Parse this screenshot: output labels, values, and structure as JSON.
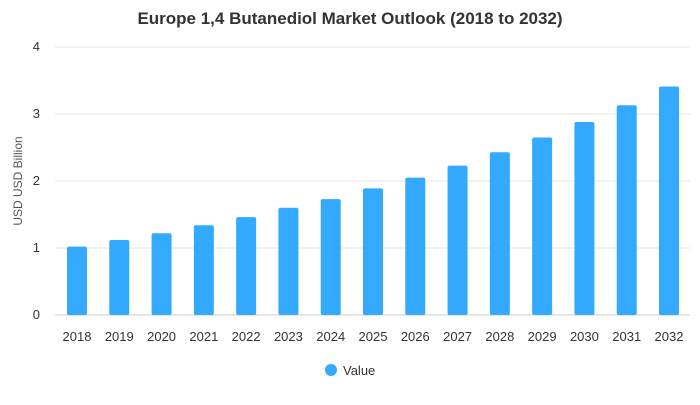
{
  "chart_data": {
    "type": "bar",
    "title": "Europe 1,4 Butanediol Market Outlook (2018 to 2032)",
    "xlabel": "",
    "ylabel": "USD USD Billion",
    "categories": [
      "2018",
      "2019",
      "2020",
      "2021",
      "2022",
      "2023",
      "2024",
      "2025",
      "2026",
      "2027",
      "2028",
      "2029",
      "2030",
      "2031",
      "2032"
    ],
    "series": [
      {
        "name": "Value",
        "values": [
          1.02,
          1.12,
          1.22,
          1.34,
          1.46,
          1.6,
          1.73,
          1.89,
          2.05,
          2.23,
          2.43,
          2.65,
          2.88,
          3.13,
          3.41
        ],
        "color": "#33aaff"
      }
    ],
    "ylim": [
      0,
      4
    ],
    "yticks": [
      "0",
      "1",
      "2",
      "3",
      "4"
    ],
    "grid": true,
    "legend_position": "bottom-center"
  }
}
